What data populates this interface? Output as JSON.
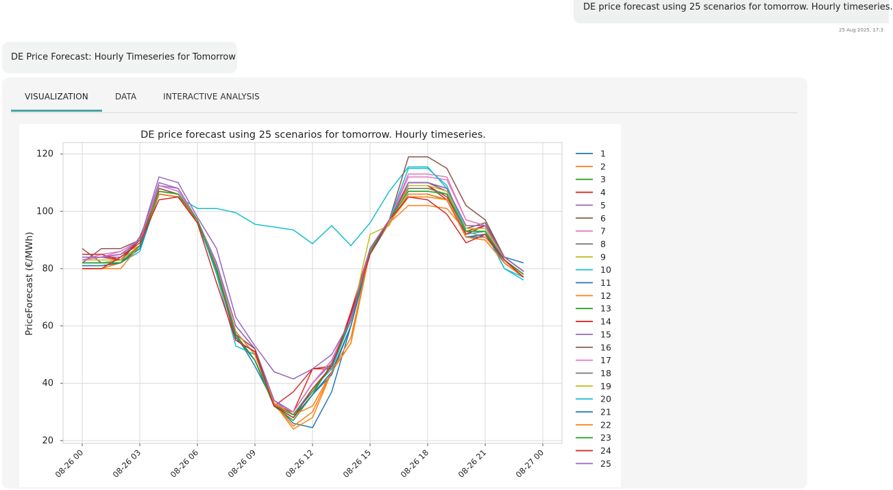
{
  "user_message": "DE price forecast using 25 scenarios for tomorrow. Hourly timeseries.",
  "timestamp": "25 Aug 2025, 17:3",
  "bot_title": "DE Price Forecast: Hourly Timeseries for Tomorrow",
  "tabs": [
    {
      "label": "VISUALIZATION"
    },
    {
      "label": "DATA"
    },
    {
      "label": "INTERACTIVE ANALYSIS"
    }
  ],
  "accent_color": "#4aa3a3",
  "chart_data": {
    "type": "line",
    "title": "DE price forecast using 25 scenarios for tomorrow. Hourly timeseries.",
    "xlabel": "",
    "ylabel": "PriceForecast (€/MWh)",
    "ylim": [
      19,
      124
    ],
    "xlim": [
      -1,
      25
    ],
    "yticks": [
      20,
      40,
      60,
      80,
      100,
      120
    ],
    "x_hours": [
      0,
      1,
      2,
      3,
      4,
      5,
      6,
      7,
      8,
      9,
      10,
      11,
      12,
      13,
      14,
      15,
      16,
      17,
      18,
      19,
      20,
      21,
      22,
      23
    ],
    "xticks": [
      {
        "hour": 0,
        "label": "08-26 00"
      },
      {
        "hour": 3,
        "label": "08-26 03"
      },
      {
        "hour": 6,
        "label": "08-26 06"
      },
      {
        "hour": 9,
        "label": "08-26 09"
      },
      {
        "hour": 12,
        "label": "08-26 12"
      },
      {
        "hour": 15,
        "label": "08-26 15"
      },
      {
        "hour": 18,
        "label": "08-26 18"
      },
      {
        "hour": 21,
        "label": "08-26 21"
      },
      {
        "hour": 24,
        "label": "08-27 00"
      }
    ],
    "grid": true,
    "legend_position": "right",
    "series": [
      {
        "name": "1",
        "color": "#1f77b4",
        "values": [
          81,
          81,
          82,
          87,
          106,
          105,
          97,
          80,
          57,
          46,
          33,
          26,
          24.5,
          37,
          60,
          85,
          96,
          106,
          106,
          104,
          91,
          91,
          84,
          82
        ]
      },
      {
        "name": "2",
        "color": "#ff7f0e",
        "values": [
          83,
          84,
          85,
          88,
          107,
          106,
          97,
          81,
          58,
          50,
          33,
          24,
          28,
          44,
          54,
          86,
          96,
          102,
          102,
          101,
          93,
          91,
          83,
          78
        ]
      },
      {
        "name": "3",
        "color": "#2ca02c",
        "values": [
          82,
          82,
          83,
          88,
          107,
          106,
          96,
          79,
          56,
          48,
          32,
          27,
          36,
          47,
          62,
          86,
          97,
          108,
          108,
          106,
          93,
          93,
          83,
          78
        ]
      },
      {
        "name": "4",
        "color": "#d62728",
        "values": [
          84,
          84,
          83,
          90,
          106,
          105,
          96,
          80,
          55,
          51,
          32,
          37,
          45,
          45,
          65,
          87,
          97,
          109,
          109,
          105,
          93,
          95,
          83,
          77
        ]
      },
      {
        "name": "5",
        "color": "#9467bd",
        "values": [
          84,
          84,
          84,
          90,
          109,
          108,
          97,
          82,
          60,
          52,
          34,
          29,
          38,
          46,
          62,
          87,
          97,
          110,
          110,
          108,
          95,
          95,
          84,
          79
        ]
      },
      {
        "name": "6",
        "color": "#8c564b",
        "values": [
          87,
          82,
          82,
          91,
          108,
          106,
          97,
          80,
          57,
          52,
          32,
          30,
          40,
          48,
          63,
          87,
          97,
          110,
          110,
          107,
          94,
          96,
          84,
          79
        ]
      },
      {
        "name": "7",
        "color": "#e377c2",
        "values": [
          83,
          85,
          86,
          90,
          109,
          107,
          97,
          81,
          58,
          50,
          33,
          30,
          40,
          48,
          63,
          87,
          97,
          113,
          113,
          112,
          97,
          95,
          83,
          78
        ]
      },
      {
        "name": "8",
        "color": "#7f7f7f",
        "values": [
          82,
          82,
          82,
          88,
          107,
          106,
          97,
          80,
          57,
          48,
          33,
          29,
          38,
          46,
          62,
          86,
          97,
          108,
          108,
          106,
          93,
          93,
          83,
          78
        ]
      },
      {
        "name": "9",
        "color": "#bcbd22",
        "values": [
          83,
          83,
          83,
          88,
          107,
          106,
          97,
          80,
          57,
          48,
          32,
          29,
          38,
          46,
          62,
          86,
          97,
          108,
          108,
          106,
          93,
          93,
          83,
          78
        ]
      },
      {
        "name": "10",
        "color": "#17becf",
        "values": [
          81,
          81,
          82,
          86,
          106,
          105,
          101,
          101,
          99.5,
          95.5,
          94.5,
          93.5,
          88.7,
          95,
          88,
          96,
          107,
          115.5,
          115.5,
          108,
          92,
          93,
          80,
          76
        ]
      },
      {
        "name": "11",
        "color": "#1f77b4",
        "values": [
          82,
          82,
          83,
          88,
          106,
          105,
          97,
          80,
          56,
          48,
          32,
          28,
          36,
          44,
          60,
          86,
          96,
          106,
          106,
          104,
          91,
          92,
          82,
          77
        ]
      },
      {
        "name": "12",
        "color": "#ff7f0e",
        "values": [
          80,
          80,
          82,
          88,
          106,
          105,
          97,
          80,
          58,
          50,
          33,
          25,
          30,
          44,
          54,
          86,
          96,
          105,
          105,
          104,
          91,
          90,
          82,
          77
        ]
      },
      {
        "name": "13",
        "color": "#2ca02c",
        "values": [
          82,
          82,
          82,
          88,
          107,
          106,
          97,
          80,
          57,
          48,
          32,
          29,
          37,
          46,
          62,
          86,
          97,
          107,
          107,
          106,
          93,
          93,
          83,
          78
        ]
      },
      {
        "name": "14",
        "color": "#d62728",
        "values": [
          85,
          85,
          83,
          90,
          106,
          105,
          96,
          80,
          55,
          51,
          32,
          30,
          45,
          46,
          64,
          87,
          97,
          109,
          109,
          104,
          92,
          95,
          83,
          78
        ]
      },
      {
        "name": "15",
        "color": "#9467bd",
        "values": [
          84,
          84,
          85,
          90,
          110,
          108,
          97,
          82,
          60,
          52,
          34,
          30,
          40,
          47,
          62,
          87,
          97,
          110,
          110,
          108,
          95,
          95,
          84,
          79
        ]
      },
      {
        "name": "16",
        "color": "#8c564b",
        "values": [
          82,
          87,
          87,
          90,
          108,
          106,
          97,
          80,
          57,
          52,
          32,
          30,
          40,
          48,
          63,
          87,
          97,
          119,
          119,
          115,
          102,
          97,
          84,
          79
        ]
      },
      {
        "name": "17",
        "color": "#e377c2",
        "values": [
          83,
          84,
          86,
          90,
          109,
          107,
          97,
          81,
          58,
          50,
          33,
          30,
          40,
          48,
          63,
          87,
          97,
          112,
          112,
          111,
          97,
          95,
          83,
          78
        ]
      },
      {
        "name": "18",
        "color": "#7f7f7f",
        "values": [
          82,
          82,
          82,
          88,
          107,
          106,
          97,
          80,
          57,
          48,
          33,
          29,
          38,
          46,
          62,
          86,
          97,
          108,
          108,
          106,
          93,
          93,
          83,
          78
        ]
      },
      {
        "name": "19",
        "color": "#bcbd22",
        "values": [
          82,
          82,
          83,
          88,
          107,
          106,
          97,
          80,
          56,
          48,
          32,
          29,
          38,
          46,
          62,
          92,
          95,
          109,
          109,
          107,
          94,
          94,
          83,
          78
        ]
      },
      {
        "name": "20",
        "color": "#17becf",
        "values": [
          82,
          82,
          82,
          87,
          106,
          105,
          97,
          78,
          53,
          50,
          32,
          29,
          38,
          45,
          62,
          86,
          97,
          115,
          115,
          109,
          93,
          93,
          80,
          77
        ]
      },
      {
        "name": "21",
        "color": "#1f77b4",
        "values": [
          81,
          81,
          82,
          87,
          106,
          105,
          97,
          80,
          56,
          48,
          32,
          28,
          36,
          43,
          60,
          86,
          96,
          106,
          106,
          104,
          91,
          92,
          82,
          77
        ]
      },
      {
        "name": "22",
        "color": "#ff7f0e",
        "values": [
          80,
          80,
          80,
          88,
          106,
          105,
          97,
          80,
          58,
          50,
          33,
          29,
          32,
          44,
          56,
          86,
          96,
          106,
          106,
          104,
          91,
          90,
          82,
          77
        ]
      },
      {
        "name": "23",
        "color": "#2ca02c",
        "values": [
          82,
          82,
          82,
          88,
          107,
          106,
          97,
          80,
          57,
          48,
          32,
          29,
          37,
          46,
          62,
          86,
          97,
          107,
          107,
          106,
          93,
          93,
          83,
          78
        ]
      },
      {
        "name": "24",
        "color": "#d62728",
        "values": [
          80,
          80,
          84,
          89,
          104,
          105,
          96,
          75,
          55,
          51,
          32,
          28,
          38,
          46,
          64,
          85,
          97,
          105,
          104,
          99,
          89,
          92,
          83,
          77
        ]
      },
      {
        "name": "25",
        "color": "#9467bd",
        "values": [
          84,
          84,
          85,
          90,
          112,
          110,
          98,
          87,
          63,
          53,
          44,
          41.5,
          45,
          50,
          62,
          87,
          97,
          110,
          110,
          108,
          95,
          95,
          84,
          79
        ]
      }
    ]
  }
}
